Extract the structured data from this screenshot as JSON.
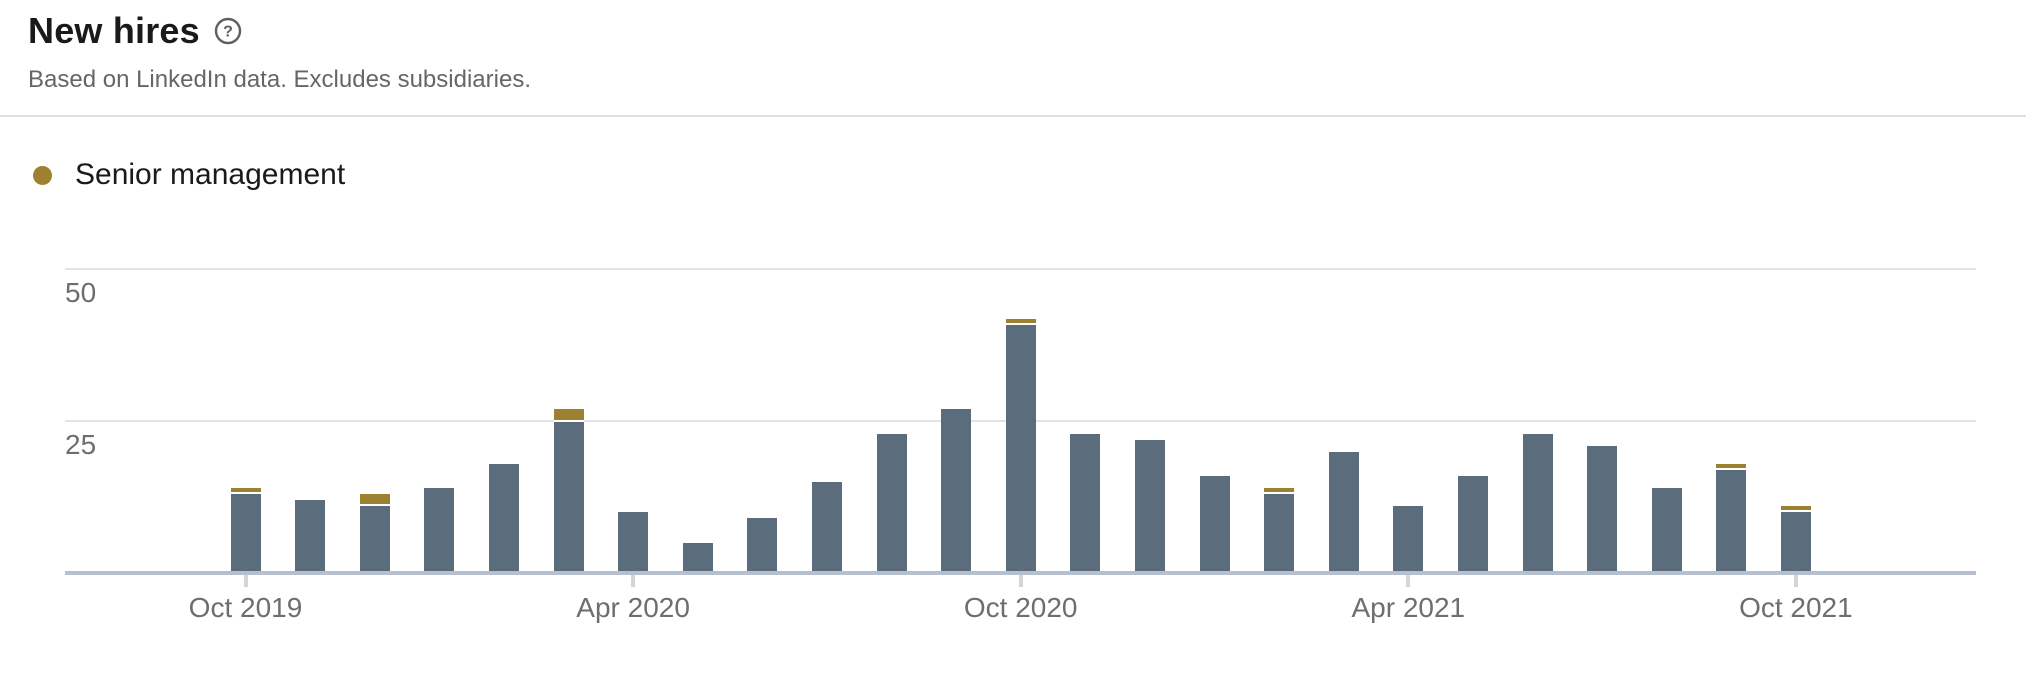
{
  "header": {
    "title": "New hires",
    "subtitle": "Based on LinkedIn data. Excludes subsidiaries.",
    "help_icon": "question-mark-circle-icon"
  },
  "legend": {
    "items": [
      {
        "label": "Senior management",
        "color": "#9c8130"
      }
    ]
  },
  "colors": {
    "bar_base": "#5b6c7c",
    "bar_senior": "#9c8130",
    "axis_line": "#b5bfcd",
    "gridline": "#e3e3e3",
    "tick": "#d5d5d5",
    "axis_text": "#6e6e6e",
    "title_text": "#1a1a1a",
    "subtitle_text": "#666666",
    "divider": "#e0e0e0",
    "help_icon": "#5f5f5f"
  },
  "chart_data": {
    "type": "bar",
    "stacked": true,
    "title": "New hires",
    "subtitle": "Based on LinkedIn data. Excludes subsidiaries.",
    "xlabel": "",
    "ylabel": "",
    "ylim": [
      0,
      50
    ],
    "grid": "horizontal",
    "legend_position": "top-left",
    "legend_visible_series": [
      "Senior management"
    ],
    "categories": [
      "Oct 2019",
      "Nov 2019",
      "Dec 2019",
      "Jan 2020",
      "Feb 2020",
      "Mar 2020",
      "Apr 2020",
      "May 2020",
      "Jun 2020",
      "Jul 2020",
      "Aug 2020",
      "Sep 2020",
      "Oct 2020",
      "Nov 2020",
      "Dec 2020",
      "Jan 2021",
      "Feb 2021",
      "Mar 2021",
      "Apr 2021",
      "May 2021",
      "Jun 2021",
      "Jul 2021",
      "Aug 2021",
      "Sep 2021",
      "Oct 2021"
    ],
    "series": [
      {
        "name": "New hires",
        "color": "#5b6c7c",
        "values": [
          13,
          12,
          11,
          14,
          18,
          25,
          10,
          5,
          9,
          15,
          23,
          27,
          41,
          23,
          22,
          16,
          13,
          20,
          11,
          16,
          23,
          21,
          14,
          17,
          10
        ]
      },
      {
        "name": "Senior management",
        "color": "#9c8130",
        "values": [
          1,
          0,
          2,
          0,
          0,
          2,
          0,
          0,
          0,
          0,
          0,
          0,
          1,
          0,
          0,
          0,
          1,
          0,
          0,
          0,
          0,
          0,
          0,
          1,
          1
        ]
      }
    ],
    "totals": [
      14,
      12,
      13,
      14,
      18,
      27,
      10,
      5,
      9,
      15,
      23,
      27,
      42,
      23,
      22,
      16,
      14,
      20,
      11,
      16,
      23,
      21,
      14,
      18,
      11
    ],
    "x_tick_labels": [
      "Oct 2019",
      "Apr 2020",
      "Oct 2020",
      "Apr 2021",
      "Oct 2021"
    ],
    "x_tick_indices": [
      0,
      6,
      12,
      18,
      24
    ],
    "y_tick_labels": [
      "50",
      "25"
    ],
    "y_tick_values": [
      50,
      25
    ]
  }
}
